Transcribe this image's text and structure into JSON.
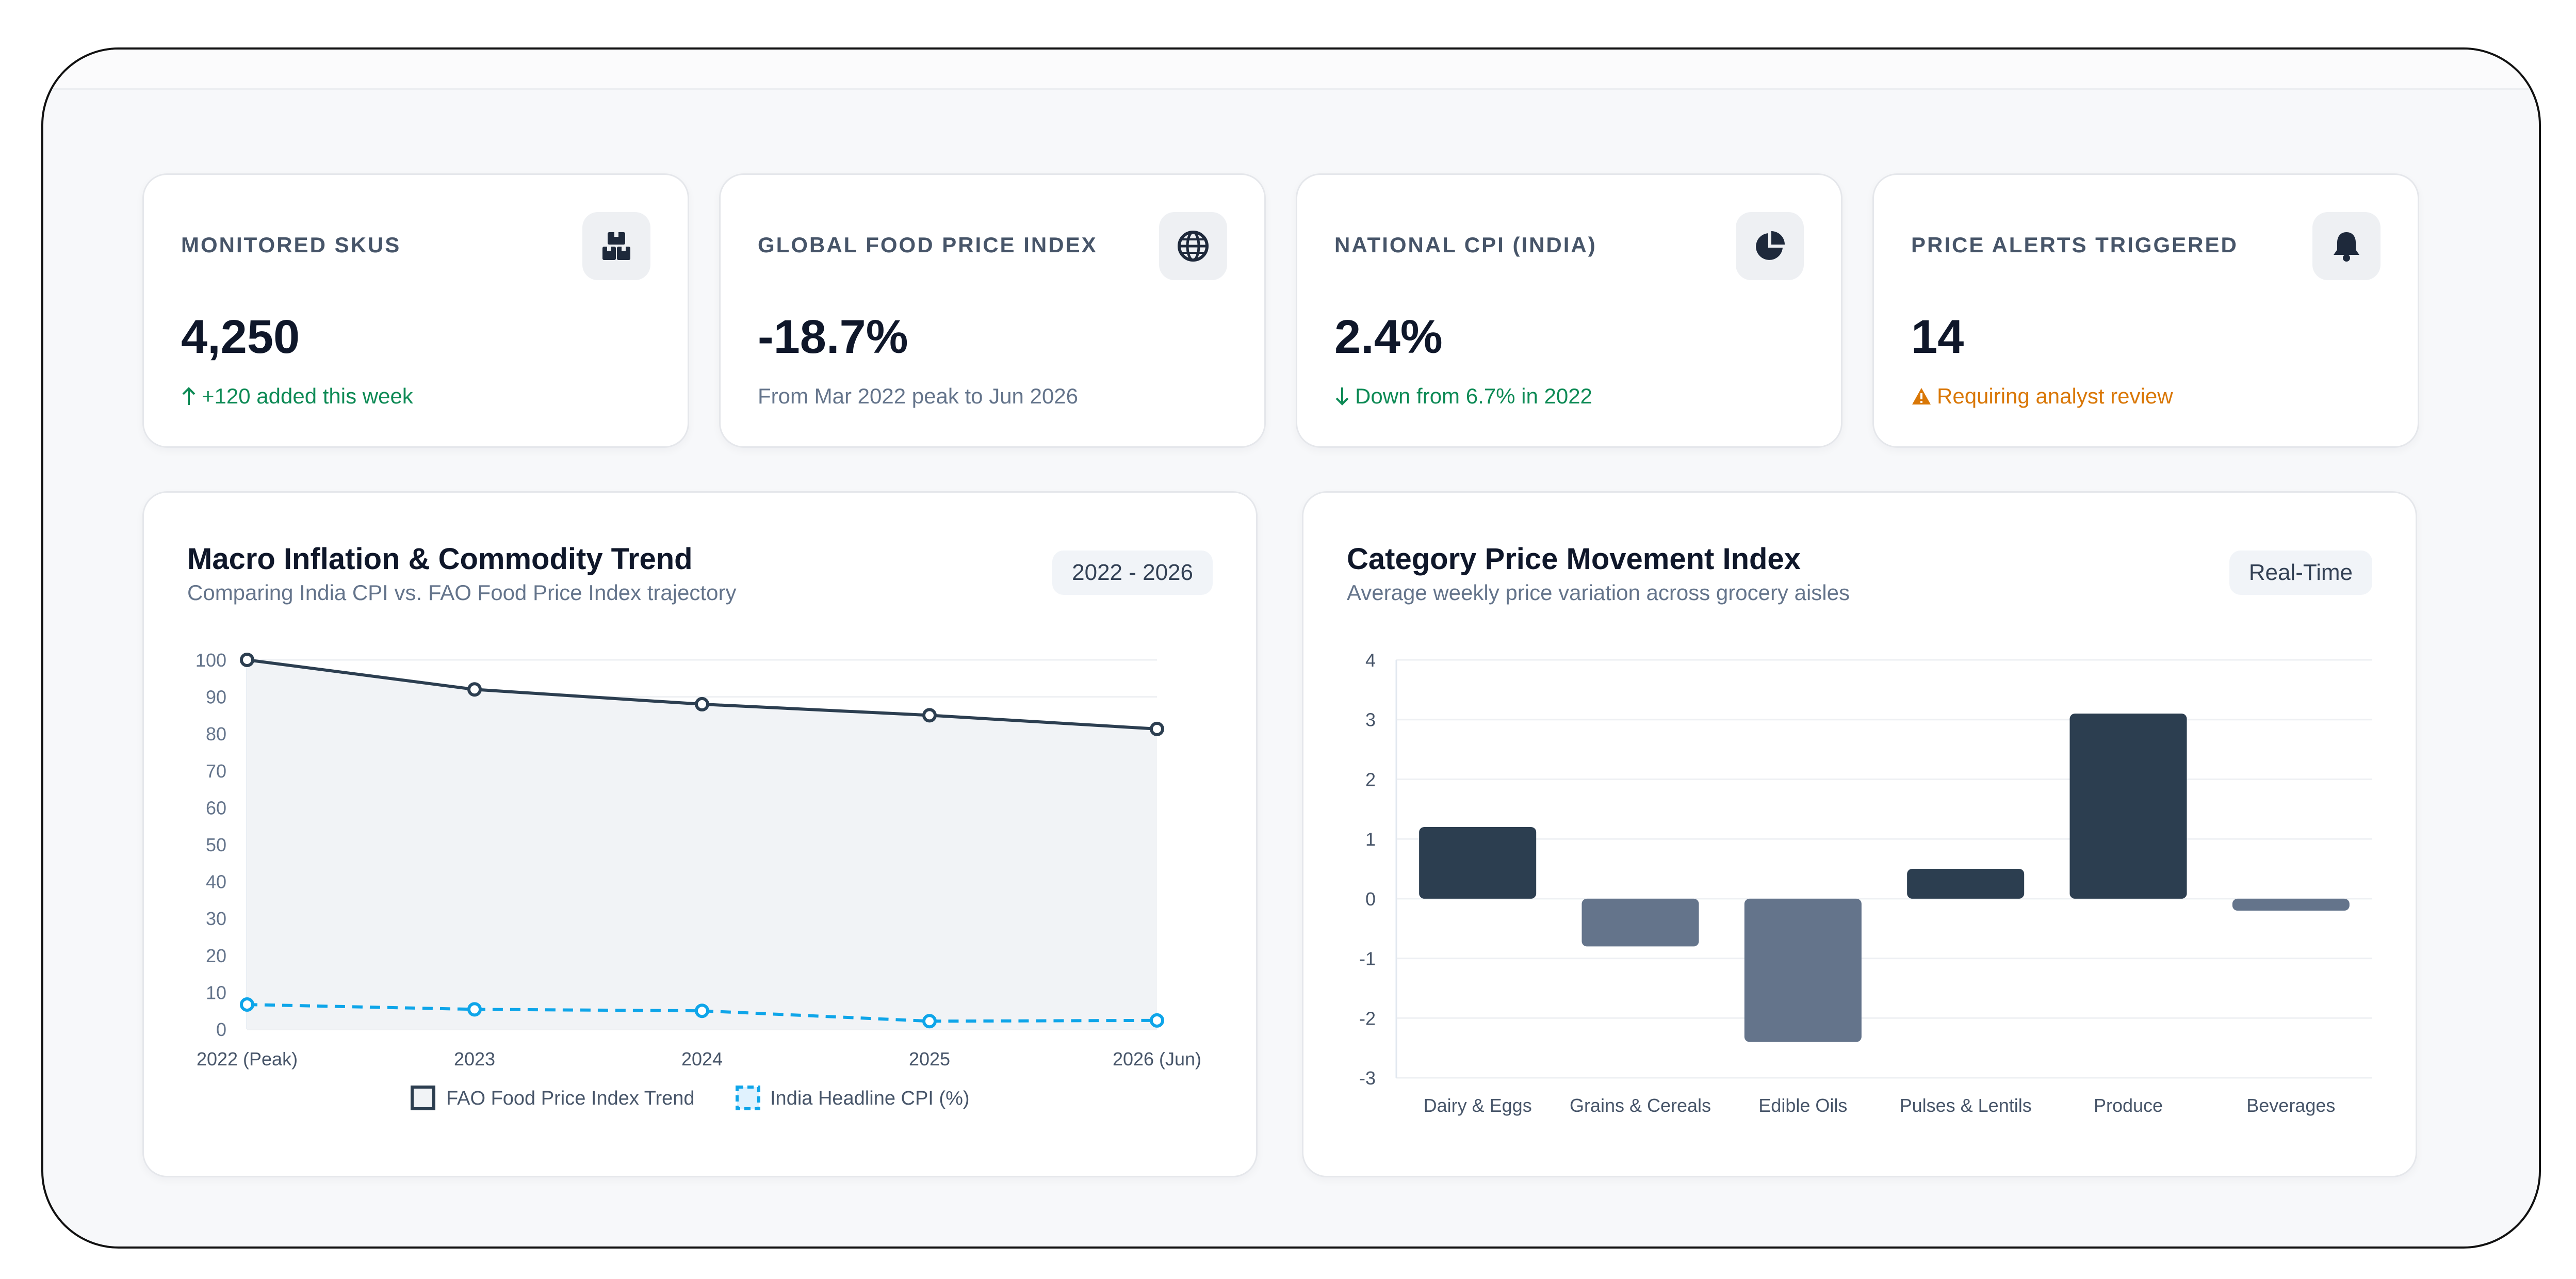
{
  "kpis": [
    {
      "label": "MONITORED SKUS",
      "icon": "boxes-icon",
      "value": "4,250",
      "sub_icon": "arrow-up-icon",
      "sub": "+120 added this week",
      "sub_color": "#0d8a55"
    },
    {
      "label": "GLOBAL FOOD PRICE INDEX",
      "icon": "globe-icon",
      "value": "-18.7%",
      "sub_icon": "",
      "sub": "From Mar 2022 peak to Jun 2026",
      "sub_color": "#64748b"
    },
    {
      "label": "NATIONAL CPI (INDIA)",
      "icon": "pie-chart-icon",
      "value": "2.4%",
      "sub_icon": "arrow-down-icon",
      "sub": "Down from 6.7% in 2022",
      "sub_color": "#0d8a55"
    },
    {
      "label": "PRICE ALERTS TRIGGERED",
      "icon": "bell-icon",
      "value": "14",
      "sub_icon": "warning-icon",
      "sub": "Requiring analyst review",
      "sub_color": "#d97706"
    }
  ],
  "macro_panel": {
    "title": "Macro Inflation & Commodity Trend",
    "subtitle": "Comparing India CPI vs. FAO Food Price Index trajectory",
    "range_chip": "2022 - 2026"
  },
  "category_panel": {
    "title": "Category Price Movement Index",
    "subtitle": "Average weekly price variation across grocery aisles",
    "mode_chip": "Real-Time"
  },
  "colors": {
    "navy": "#334155",
    "slate": "#64748b",
    "cyan": "#0ea5e9",
    "green": "#0d8a55",
    "amber": "#d97706"
  },
  "chart_data": [
    {
      "type": "line",
      "x": [
        "2022 (Peak)",
        "2023",
        "2024",
        "2025",
        "2026 (Jun)"
      ],
      "series": [
        {
          "name": "FAO Food Price Index Trend",
          "values": [
            100,
            92,
            88,
            85,
            81.3
          ],
          "style": "solid-area"
        },
        {
          "name": "India Headline CPI (%)",
          "values": [
            6.7,
            5.4,
            5.0,
            2.2,
            2.4
          ],
          "style": "dashed"
        }
      ],
      "ylim": [
        0,
        100
      ],
      "yticks": [
        0,
        10,
        20,
        30,
        40,
        50,
        60,
        70,
        80,
        90,
        100
      ],
      "grid": true,
      "legend": "bottom"
    },
    {
      "type": "bar",
      "categories": [
        "Dairy & Eggs",
        "Grains & Cereals",
        "Edible Oils",
        "Pulses & Lentils",
        "Produce",
        "Beverages"
      ],
      "values": [
        1.2,
        -0.8,
        -2.4,
        0.5,
        3.1,
        -0.2
      ],
      "ylim": [
        -3,
        4
      ],
      "yticks": [
        4,
        3,
        2,
        1,
        0,
        -1,
        -2,
        -3
      ],
      "grid": true,
      "legend": "none"
    }
  ]
}
